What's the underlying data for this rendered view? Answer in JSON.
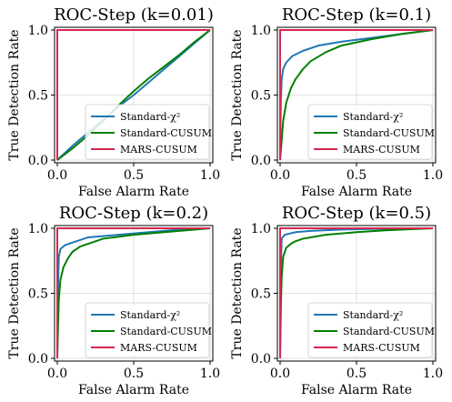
{
  "chart_data": [
    {
      "type": "line",
      "title": "ROC-Step (k=0.01)",
      "xlabel": "False Alarm Rate",
      "ylabel": "True Detection Rate",
      "xlim": [
        0,
        1
      ],
      "ylim": [
        0,
        1
      ],
      "xticks": [
        "0.0",
        "0.5",
        "1.0"
      ],
      "yticks": [
        "0.0",
        "0.5",
        "1.0"
      ],
      "grid": true,
      "legend": "lower-right",
      "series": [
        {
          "name": "Standard-χ²",
          "color": "#1f77b4",
          "x": [
            0,
            0.1,
            0.2,
            0.3,
            0.4,
            0.5,
            0.6,
            0.7,
            0.8,
            0.9,
            1.0
          ],
          "y": [
            0,
            0.11,
            0.21,
            0.31,
            0.41,
            0.5,
            0.6,
            0.7,
            0.8,
            0.9,
            1.0
          ]
        },
        {
          "name": "Standard-CUSUM",
          "color": "#008000",
          "x": [
            0,
            0.1,
            0.2,
            0.3,
            0.4,
            0.5,
            0.6,
            0.7,
            0.8,
            0.9,
            1.0
          ],
          "y": [
            0,
            0.09,
            0.19,
            0.3,
            0.42,
            0.53,
            0.63,
            0.72,
            0.81,
            0.91,
            1.0
          ]
        },
        {
          "name": "MARS-CUSUM",
          "color": "#d62750",
          "x": [
            0,
            0,
            1.0
          ],
          "y": [
            0,
            1.0,
            1.0
          ]
        }
      ]
    },
    {
      "type": "line",
      "title": "ROC-Step (k=0.1)",
      "xlabel": "False Alarm Rate",
      "ylabel": "True Detection Rate",
      "xlim": [
        0,
        1
      ],
      "ylim": [
        0,
        1
      ],
      "xticks": [
        "0.0",
        "0.5",
        "1.0"
      ],
      "yticks": [
        "0.0",
        "0.5",
        "1.0"
      ],
      "grid": true,
      "legend": "lower-right",
      "series": [
        {
          "name": "Standard-χ²",
          "color": "#1f77b4",
          "x": [
            0,
            0.005,
            0.01,
            0.02,
            0.04,
            0.08,
            0.15,
            0.25,
            0.4,
            0.6,
            0.8,
            1.0
          ],
          "y": [
            0,
            0.45,
            0.62,
            0.7,
            0.75,
            0.8,
            0.84,
            0.88,
            0.91,
            0.94,
            0.97,
            1.0
          ]
        },
        {
          "name": "Standard-CUSUM",
          "color": "#008000",
          "x": [
            0,
            0.01,
            0.02,
            0.04,
            0.07,
            0.1,
            0.15,
            0.2,
            0.3,
            0.4,
            0.6,
            0.8,
            1.0
          ],
          "y": [
            0,
            0.15,
            0.3,
            0.44,
            0.55,
            0.62,
            0.7,
            0.76,
            0.83,
            0.88,
            0.93,
            0.97,
            1.0
          ]
        },
        {
          "name": "MARS-CUSUM",
          "color": "#d62750",
          "x": [
            0,
            0,
            1.0
          ],
          "y": [
            0,
            1.0,
            1.0
          ]
        }
      ]
    },
    {
      "type": "line",
      "title": "ROC-Step (k=0.2)",
      "xlabel": "False Alarm Rate",
      "ylabel": "True Detection Rate",
      "xlim": [
        0,
        1
      ],
      "ylim": [
        0,
        1
      ],
      "xticks": [
        "0.0",
        "0.5",
        "1.0"
      ],
      "yticks": [
        "0.0",
        "0.5",
        "1.0"
      ],
      "grid": true,
      "legend": "lower-right",
      "series": [
        {
          "name": "Standard-χ²",
          "color": "#1f77b4",
          "x": [
            0,
            0.005,
            0.01,
            0.02,
            0.05,
            0.1,
            0.2,
            0.4,
            0.6,
            0.8,
            1.0
          ],
          "y": [
            0,
            0.55,
            0.78,
            0.84,
            0.87,
            0.89,
            0.93,
            0.95,
            0.97,
            0.99,
            1.0
          ]
        },
        {
          "name": "Standard-CUSUM",
          "color": "#008000",
          "x": [
            0,
            0.005,
            0.01,
            0.02,
            0.04,
            0.07,
            0.1,
            0.15,
            0.2,
            0.3,
            0.5,
            0.7,
            1.0
          ],
          "y": [
            0,
            0.25,
            0.45,
            0.6,
            0.7,
            0.77,
            0.82,
            0.86,
            0.88,
            0.92,
            0.95,
            0.97,
            1.0
          ]
        },
        {
          "name": "MARS-CUSUM",
          "color": "#d62750",
          "x": [
            0,
            0,
            1.0
          ],
          "y": [
            0,
            1.0,
            1.0
          ]
        }
      ]
    },
    {
      "type": "line",
      "title": "ROC-Step (k=0.5)",
      "xlabel": "False Alarm Rate",
      "ylabel": "True Detection Rate",
      "xlim": [
        0,
        1
      ],
      "ylim": [
        0,
        1
      ],
      "xticks": [
        "0.0",
        "0.5",
        "1.0"
      ],
      "yticks": [
        "0.0",
        "0.5",
        "1.0"
      ],
      "grid": true,
      "legend": "lower-right",
      "series": [
        {
          "name": "Standard-χ²",
          "color": "#1f77b4",
          "x": [
            0,
            0.003,
            0.01,
            0.03,
            0.1,
            0.2,
            0.4,
            0.6,
            0.8,
            1.0
          ],
          "y": [
            0,
            0.6,
            0.92,
            0.95,
            0.97,
            0.98,
            0.99,
            0.995,
            0.998,
            1.0
          ]
        },
        {
          "name": "Standard-CUSUM",
          "color": "#008000",
          "x": [
            0,
            0.005,
            0.01,
            0.02,
            0.04,
            0.07,
            0.1,
            0.15,
            0.2,
            0.3,
            0.5,
            0.7,
            1.0
          ],
          "y": [
            0,
            0.4,
            0.62,
            0.78,
            0.85,
            0.88,
            0.9,
            0.92,
            0.93,
            0.95,
            0.97,
            0.985,
            1.0
          ]
        },
        {
          "name": "MARS-CUSUM",
          "color": "#d62750",
          "x": [
            0,
            0,
            1.0
          ],
          "y": [
            0,
            1.0,
            1.0
          ]
        }
      ]
    }
  ]
}
